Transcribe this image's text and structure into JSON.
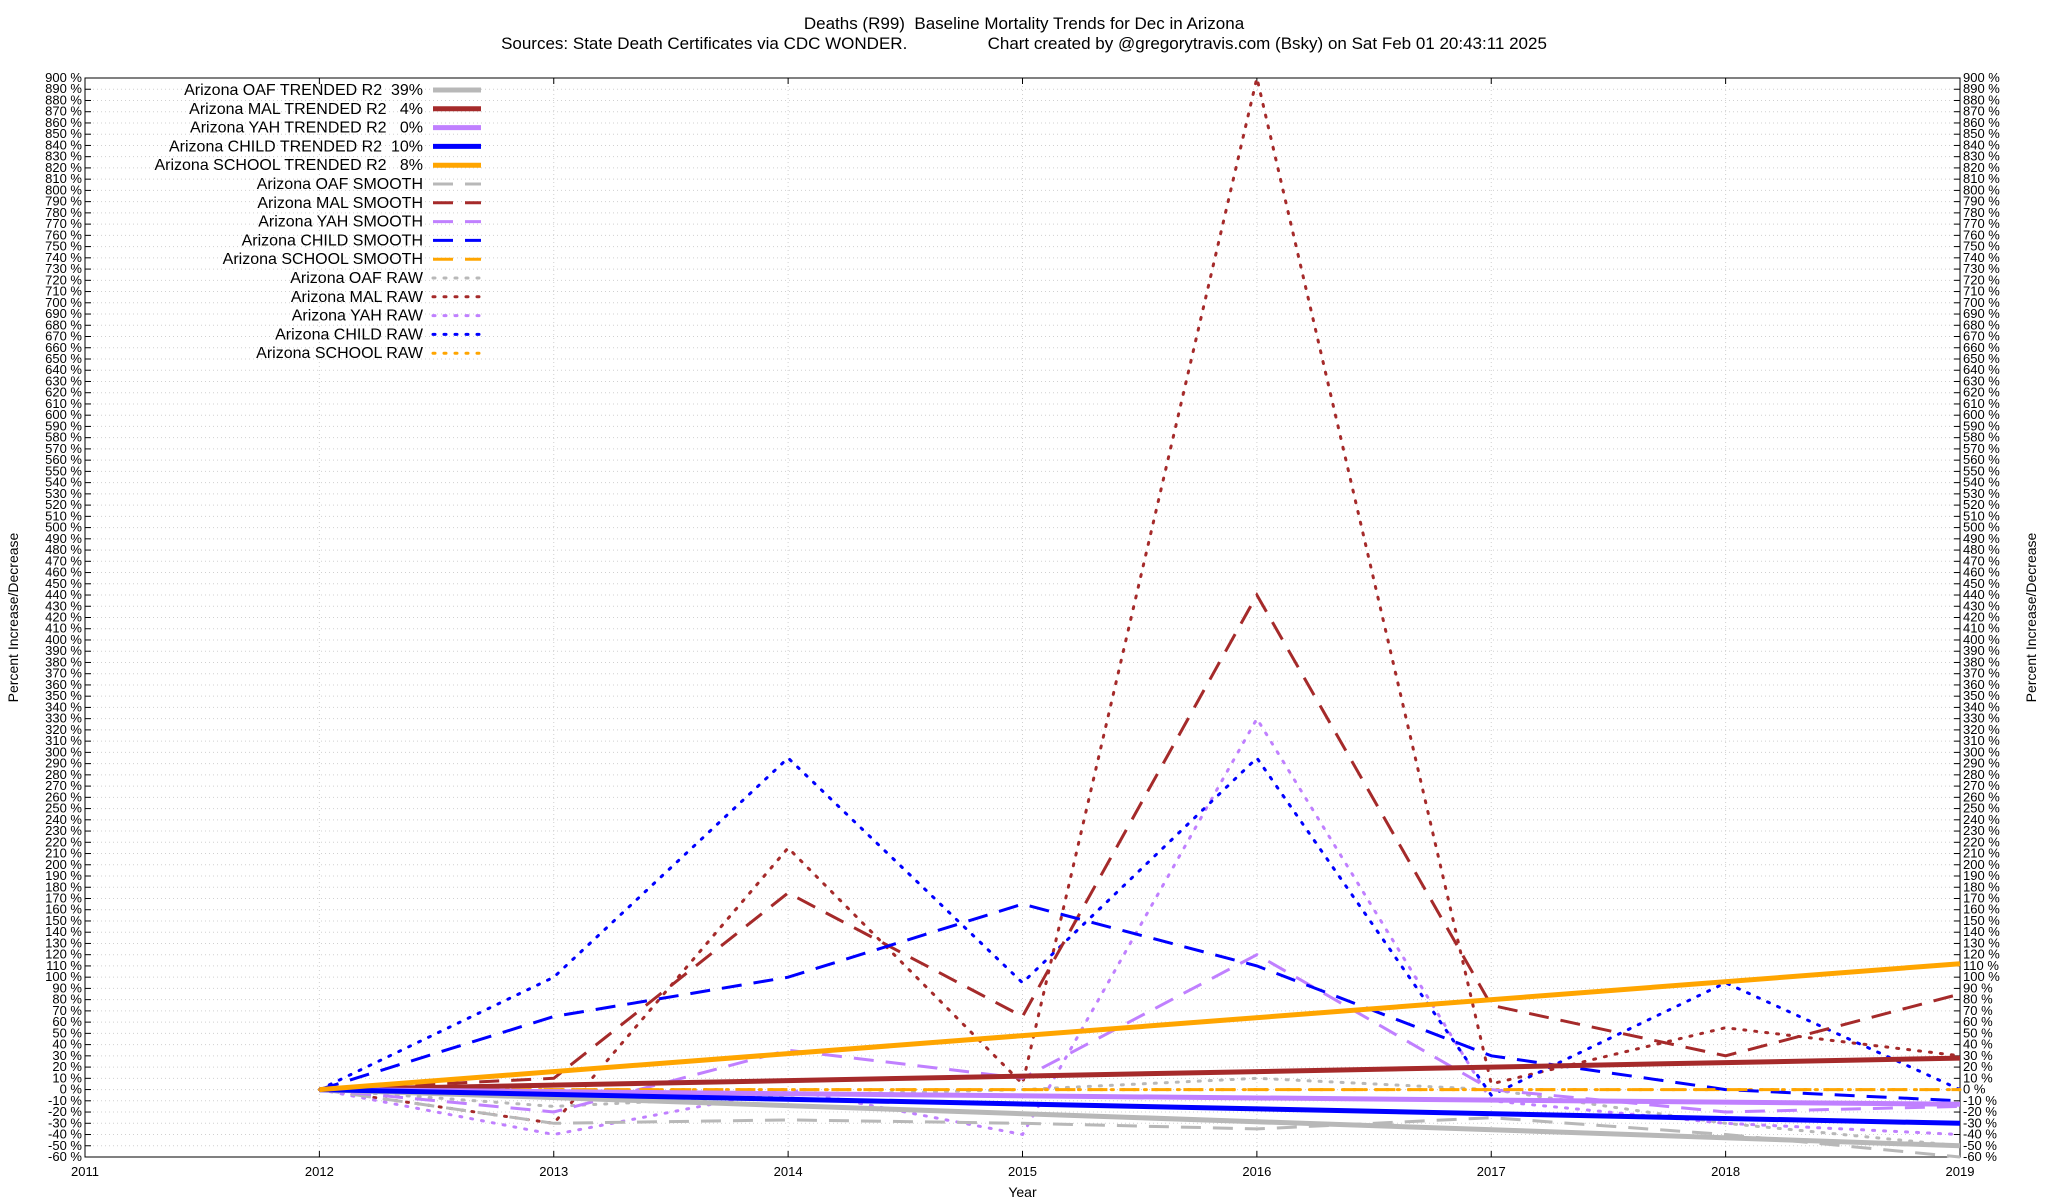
{
  "title_line1": "Deaths (R99)  Baseline Mortality Trends for Dec in Arizona",
  "title_line2": "Sources: State Death Certificates via CDC WONDER.                 Chart created by @gregorytravis.com (Bsky) on Sat Feb 01 20:43:11 2025",
  "chart_data": {
    "type": "line",
    "xlabel": "Year",
    "ylabel": "Percent Increase/Decrease",
    "y2label": "Percent Increase/Decrease",
    "xlim": [
      2011,
      2019
    ],
    "ylim": [
      -60,
      900
    ],
    "x_ticks": [
      2011,
      2012,
      2013,
      2014,
      2015,
      2016,
      2017,
      2018,
      2019
    ],
    "y_tick_step": 10,
    "y_tick_suffix": " %",
    "grid": true,
    "legend_position": "top-left",
    "series": [
      {
        "name": "Arizona OAF TRENDED R2  39%",
        "style": "solid",
        "color": "#b8b8b8",
        "x": [
          2012,
          2019
        ],
        "y": [
          0,
          -50
        ]
      },
      {
        "name": "Arizona MAL TRENDED R2   4%",
        "style": "solid",
        "color": "#a52a2a",
        "x": [
          2012,
          2019
        ],
        "y": [
          0,
          28
        ]
      },
      {
        "name": "Arizona YAH TRENDED R2   0%",
        "style": "solid",
        "color": "#c080ff",
        "x": [
          2012,
          2019
        ],
        "y": [
          0,
          -13
        ]
      },
      {
        "name": "Arizona CHILD TRENDED R2  10%",
        "style": "solid",
        "color": "#0000ff",
        "x": [
          2012,
          2019
        ],
        "y": [
          0,
          -30
        ]
      },
      {
        "name": "Arizona SCHOOL TRENDED R2   8%",
        "style": "solid",
        "color": "#ffa500",
        "x": [
          2012,
          2019
        ],
        "y": [
          0,
          112
        ]
      },
      {
        "name": "Arizona OAF SMOOTH",
        "style": "dashed",
        "color": "#b8b8b8",
        "x": [
          2012,
          2013,
          2014,
          2015,
          2016,
          2017,
          2018,
          2019
        ],
        "y": [
          0,
          -30,
          -27,
          -30,
          -35,
          -25,
          -40,
          -60
        ]
      },
      {
        "name": "Arizona MAL SMOOTH",
        "style": "dashed",
        "color": "#a52a2a",
        "x": [
          2012,
          2013,
          2014,
          2015,
          2016,
          2017,
          2018,
          2019
        ],
        "y": [
          0,
          10,
          175,
          65,
          440,
          75,
          30,
          85
        ]
      },
      {
        "name": "Arizona YAH SMOOTH",
        "style": "dashed",
        "color": "#c080ff",
        "x": [
          2012,
          2013,
          2014,
          2015,
          2016,
          2017,
          2018,
          2019
        ],
        "y": [
          0,
          -20,
          35,
          10,
          120,
          0,
          -20,
          -15
        ]
      },
      {
        "name": "Arizona CHILD SMOOTH",
        "style": "dashed",
        "color": "#0000ff",
        "x": [
          2012,
          2013,
          2014,
          2015,
          2016,
          2017,
          2018,
          2019
        ],
        "y": [
          0,
          65,
          100,
          165,
          110,
          30,
          0,
          -10
        ]
      },
      {
        "name": "Arizona SCHOOL SMOOTH",
        "style": "dashed",
        "color": "#ffa500",
        "x": [
          2012,
          2013,
          2014,
          2015,
          2016,
          2017,
          2018,
          2019
        ],
        "y": [
          0,
          0,
          0,
          0,
          0,
          0,
          0,
          0
        ]
      },
      {
        "name": "Arizona OAF RAW",
        "style": "dotted",
        "color": "#b8b8b8",
        "x": [
          2012,
          2013,
          2014,
          2015,
          2016,
          2017,
          2018,
          2019
        ],
        "y": [
          0,
          -15,
          -5,
          0,
          10,
          0,
          -30,
          -50
        ]
      },
      {
        "name": "Arizona MAL RAW",
        "style": "dotted",
        "color": "#a52a2a",
        "x": [
          2012,
          2013,
          2014,
          2015,
          2016,
          2017,
          2018,
          2019
        ],
        "y": [
          0,
          -30,
          215,
          5,
          900,
          5,
          55,
          30
        ]
      },
      {
        "name": "Arizona YAH RAW",
        "style": "dotted",
        "color": "#c080ff",
        "x": [
          2012,
          2013,
          2014,
          2015,
          2016,
          2017,
          2018,
          2019
        ],
        "y": [
          0,
          -40,
          0,
          -40,
          330,
          -10,
          -30,
          -40
        ]
      },
      {
        "name": "Arizona CHILD RAW",
        "style": "dotted",
        "color": "#0000ff",
        "x": [
          2012,
          2013,
          2014,
          2015,
          2016,
          2017,
          2018,
          2019
        ],
        "y": [
          0,
          100,
          295,
          95,
          295,
          -5,
          95,
          0
        ]
      },
      {
        "name": "Arizona SCHOOL RAW",
        "style": "dotted",
        "color": "#ffa500",
        "x": [
          2012,
          2013,
          2014,
          2015,
          2016,
          2017,
          2018,
          2019
        ],
        "y": [
          0,
          0,
          0,
          0,
          0,
          0,
          0,
          0
        ]
      }
    ]
  }
}
